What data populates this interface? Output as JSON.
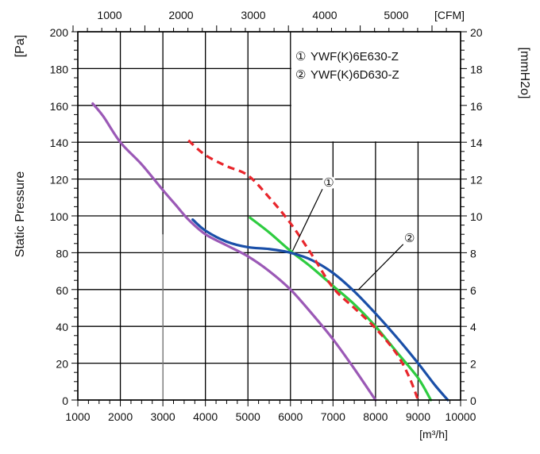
{
  "chart_data": {
    "type": "line",
    "bottom_axis": {
      "label": "[m³/h]",
      "range": [
        1000,
        10000
      ],
      "ticks": [
        "1000",
        "2000",
        "3000",
        "4000",
        "5000",
        "6000",
        "7000",
        "8000",
        "9000",
        "10000"
      ]
    },
    "top_axis": {
      "label": "[CFM]",
      "ticks": [
        {
          "label": "1000",
          "value": 1000
        },
        {
          "label": "2000",
          "value": 2000
        },
        {
          "label": "3000",
          "value": 3000
        },
        {
          "label": "4000",
          "value": 4000
        },
        {
          "label": "5000",
          "value": 5000
        }
      ]
    },
    "left_axis": {
      "unit": "[Pa]",
      "label": "Static Pressure",
      "range": [
        0,
        200
      ],
      "ticks": [
        "0",
        "20",
        "40",
        "60",
        "80",
        "100",
        "120",
        "140",
        "160",
        "180",
        "200"
      ]
    },
    "right_axis": {
      "unit": "[mmH2o]",
      "ticks": [
        "0",
        "2",
        "4",
        "6",
        "8",
        "10",
        "12",
        "14",
        "16",
        "18",
        "20"
      ]
    },
    "legend": [
      {
        "marker": "①",
        "text": "YWF(K)6E630-Z"
      },
      {
        "marker": "②",
        "text": "YWF(K)6D630-Z"
      }
    ],
    "callouts": [
      {
        "text": "①",
        "target_series": 1,
        "x": 6900,
        "y": 118,
        "point": [
          6050,
          81
        ]
      },
      {
        "text": "②",
        "target_series": 2,
        "x": 8800,
        "y": 88,
        "point": [
          7600,
          60
        ]
      }
    ],
    "reference_line": {
      "x": 3000,
      "y_range": [
        0,
        90
      ],
      "color": "#888888"
    },
    "series": [
      {
        "color": "#9b59b6",
        "dash": false,
        "points": [
          [
            1350,
            161
          ],
          [
            1600,
            154
          ],
          [
            2000,
            140
          ],
          [
            2500,
            128
          ],
          [
            3000,
            114
          ],
          [
            3300,
            106
          ],
          [
            3600,
            98
          ],
          [
            4000,
            90
          ],
          [
            4500,
            84
          ],
          [
            5000,
            78
          ],
          [
            5500,
            70
          ],
          [
            6000,
            60
          ],
          [
            6500,
            47
          ],
          [
            7000,
            33
          ],
          [
            7500,
            17
          ],
          [
            8000,
            0
          ]
        ]
      },
      {
        "color": "#2ecc40",
        "dash": false,
        "points": [
          [
            5050,
            99
          ],
          [
            5500,
            91
          ],
          [
            6000,
            81
          ],
          [
            6500,
            72
          ],
          [
            7000,
            62
          ],
          [
            7500,
            52
          ],
          [
            8000,
            40
          ],
          [
            8500,
            26
          ],
          [
            9000,
            12
          ],
          [
            9300,
            0
          ]
        ]
      },
      {
        "color": "#1a4fa8",
        "dash": false,
        "points": [
          [
            3700,
            98
          ],
          [
            4000,
            92
          ],
          [
            4500,
            86
          ],
          [
            5000,
            83
          ],
          [
            5500,
            82
          ],
          [
            6000,
            80
          ],
          [
            6500,
            76
          ],
          [
            7000,
            69
          ],
          [
            7500,
            59
          ],
          [
            8000,
            47
          ],
          [
            8500,
            34
          ],
          [
            9000,
            20
          ],
          [
            9400,
            8
          ],
          [
            9700,
            0
          ]
        ]
      },
      {
        "color": "#e8262c",
        "dash": true,
        "points": [
          [
            3600,
            141
          ],
          [
            4000,
            133
          ],
          [
            4500,
            127
          ],
          [
            5000,
            122
          ],
          [
            5500,
            110
          ],
          [
            6000,
            96
          ],
          [
            6500,
            79
          ],
          [
            7000,
            61
          ],
          [
            7500,
            50
          ],
          [
            8000,
            39
          ],
          [
            8500,
            25
          ],
          [
            8800,
            12
          ],
          [
            9000,
            0
          ]
        ]
      }
    ]
  }
}
